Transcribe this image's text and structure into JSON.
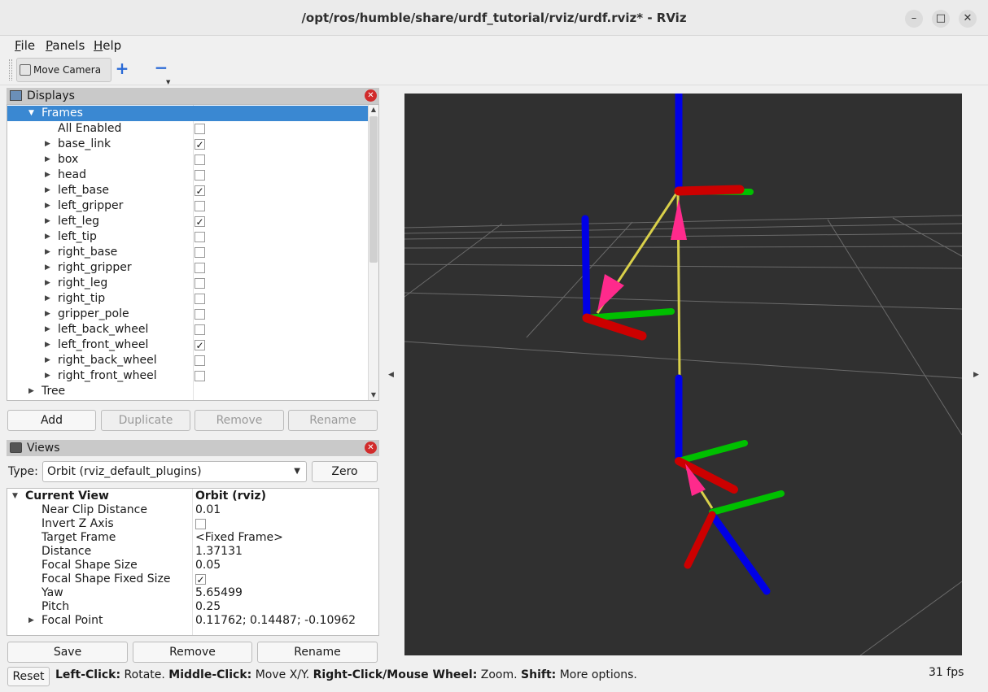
{
  "window": {
    "title": "/opt/ros/humble/share/urdf_tutorial/rviz/urdf.rviz* - RViz",
    "minimize": "–",
    "maximize": "□",
    "close": "✕"
  },
  "menu": [
    {
      "mnemonic": "F",
      "rest": "ile"
    },
    {
      "mnemonic": "P",
      "rest": "anels"
    },
    {
      "mnemonic": "H",
      "rest": "elp"
    }
  ],
  "toolbar": {
    "move_camera": "Move Camera",
    "add_tool": "+",
    "remove_tool": "−"
  },
  "displays": {
    "title": "Displays",
    "frames_label": "Frames",
    "tree_label": "Tree",
    "frames": [
      {
        "name": "All Enabled",
        "checked": false,
        "expandable": false
      },
      {
        "name": "base_link",
        "checked": true,
        "expandable": true
      },
      {
        "name": "box",
        "checked": false,
        "expandable": true
      },
      {
        "name": "head",
        "checked": false,
        "expandable": true
      },
      {
        "name": "left_base",
        "checked": true,
        "expandable": true
      },
      {
        "name": "left_gripper",
        "checked": false,
        "expandable": true
      },
      {
        "name": "left_leg",
        "checked": true,
        "expandable": true
      },
      {
        "name": "left_tip",
        "checked": false,
        "expandable": true
      },
      {
        "name": "right_base",
        "checked": false,
        "expandable": true
      },
      {
        "name": "right_gripper",
        "checked": false,
        "expandable": true
      },
      {
        "name": "right_leg",
        "checked": false,
        "expandable": true
      },
      {
        "name": "right_tip",
        "checked": false,
        "expandable": true
      },
      {
        "name": "gripper_pole",
        "checked": false,
        "expandable": true
      },
      {
        "name": "left_back_wheel",
        "checked": false,
        "expandable": true
      },
      {
        "name": "left_front_wheel",
        "checked": true,
        "expandable": true
      },
      {
        "name": "right_back_wheel",
        "checked": false,
        "expandable": true
      },
      {
        "name": "right_front_wheel",
        "checked": false,
        "expandable": true
      }
    ],
    "buttons": {
      "add": "Add",
      "duplicate": "Duplicate",
      "remove": "Remove",
      "rename": "Rename"
    }
  },
  "views": {
    "title": "Views",
    "type_label": "Type:",
    "type_value": "Orbit (rviz_default_plugins)",
    "zero": "Zero",
    "current_view": {
      "name": "Current View",
      "value": "Orbit (rviz)"
    },
    "properties": [
      {
        "name": "Near Clip Distance",
        "value": "0.01"
      },
      {
        "name": "Invert Z Axis",
        "value": "",
        "checkbox": true,
        "checked": false
      },
      {
        "name": "Target Frame",
        "value": "<Fixed Frame>"
      },
      {
        "name": "Distance",
        "value": "1.37131"
      },
      {
        "name": "Focal Shape Size",
        "value": "0.05"
      },
      {
        "name": "Focal Shape Fixed Size",
        "value": "",
        "checkbox": true,
        "checked": true
      },
      {
        "name": "Yaw",
        "value": "5.65499"
      },
      {
        "name": "Pitch",
        "value": "0.25"
      },
      {
        "name": "Focal Point",
        "value": "0.11762; 0.14487; -0.10962",
        "expandable": true
      }
    ],
    "buttons": {
      "save": "Save",
      "remove": "Remove",
      "rename": "Rename"
    }
  },
  "status": {
    "reset": "Reset",
    "left_click_key": "Left-Click:",
    "left_click_text": " Rotate. ",
    "middle_click_key": "Middle-Click:",
    "middle_click_text": " Move X/Y. ",
    "right_click_key": "Right-Click/Mouse Wheel:",
    "right_click_text": " Zoom. ",
    "shift_key": "Shift:",
    "shift_text": " More options.",
    "fps": "31 fps"
  },
  "colors": {
    "x_axis": "#cc0000",
    "y_axis": "#00c000",
    "z_axis": "#0000e6",
    "tf_link": "#d9d04a",
    "tf_arrow": "#ff2a8c",
    "background": "#303030"
  }
}
